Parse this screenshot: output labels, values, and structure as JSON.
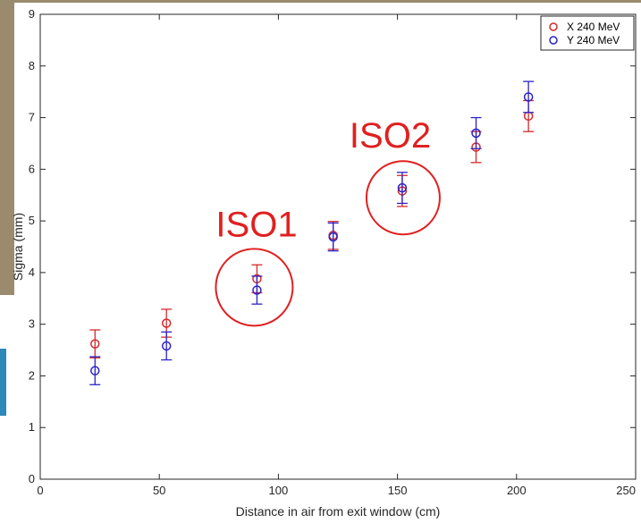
{
  "colors": {
    "series_x": "#d42a2a",
    "series_y": "#2a22c8",
    "annotation": "#e02020",
    "backdrop_photo": "#9a8a6e",
    "backdrop_accent": "#2e88b8"
  },
  "chart_data": {
    "type": "scatter",
    "title": "",
    "xlabel": "Distance in air from exit window (cm)",
    "ylabel": "Sigma (mm)",
    "xlim": [
      0,
      250
    ],
    "ylim": [
      0,
      9
    ],
    "xticks": [
      0,
      50,
      100,
      150,
      200,
      250
    ],
    "yticks": [
      0,
      1,
      2,
      3,
      4,
      5,
      6,
      7,
      8,
      9
    ],
    "grid": false,
    "legend_position": "top-right",
    "marker": "open-circle",
    "error_bars": true,
    "series": [
      {
        "name": "X 240 MeV",
        "color": "#d42a2a",
        "x": [
          23,
          53,
          91,
          123,
          152,
          183,
          205
        ],
        "y": [
          2.62,
          3.02,
          3.88,
          4.72,
          5.58,
          6.43,
          7.03
        ],
        "err": [
          0.27,
          0.27,
          0.27,
          0.27,
          0.3,
          0.3,
          0.3
        ]
      },
      {
        "name": "Y 240 MeV",
        "color": "#2a22c8",
        "x": [
          23,
          53,
          91,
          123,
          152,
          183,
          205
        ],
        "y": [
          2.1,
          2.58,
          3.66,
          4.69,
          5.64,
          6.7,
          7.4
        ],
        "err": [
          0.27,
          0.27,
          0.27,
          0.27,
          0.3,
          0.3,
          0.3
        ]
      }
    ],
    "annotations": [
      {
        "text": "ISO1",
        "x": 91,
        "y": 3.75
      },
      {
        "text": "ISO2",
        "x": 152,
        "y": 5.5
      }
    ]
  }
}
